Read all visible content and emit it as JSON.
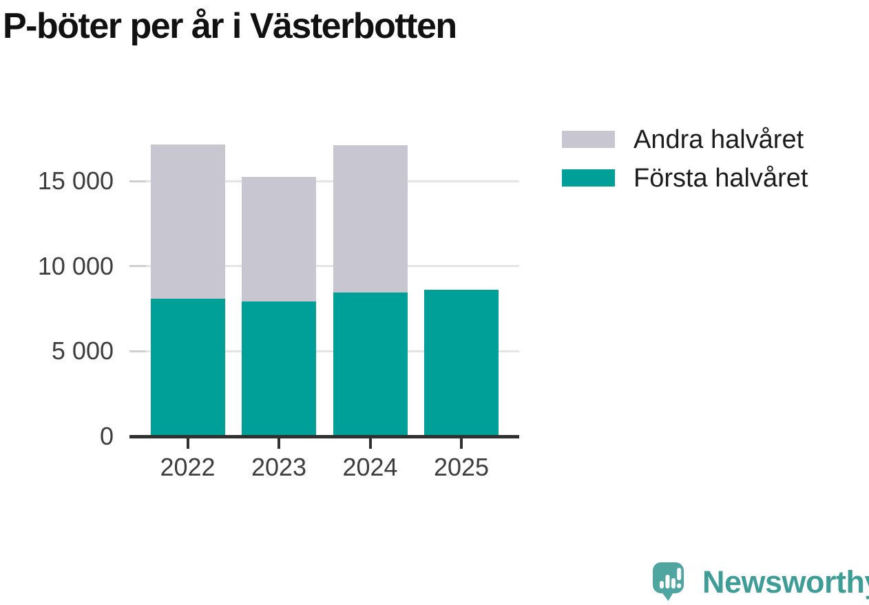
{
  "title": "P-böter per år i Västerbotten",
  "legend": {
    "items": [
      {
        "label": "Andra halvåret",
        "color": "#c8c6d1"
      },
      {
        "label": "Första halvåret",
        "color": "#00a099"
      }
    ]
  },
  "chart_data": {
    "type": "bar",
    "stacked": true,
    "title": "P-böter per år i Västerbotten",
    "categories": [
      "2022",
      "2023",
      "2024",
      "2025"
    ],
    "series": [
      {
        "name": "Första halvåret",
        "color": "#00a099",
        "values": [
          8100,
          7950,
          8450,
          8600
        ]
      },
      {
        "name": "Andra halvåret",
        "color": "#c8c6d1",
        "values": [
          9050,
          7300,
          8650,
          0
        ]
      }
    ],
    "xlabel": "",
    "ylabel": "",
    "ylim": [
      0,
      17500
    ],
    "yticks": [
      {
        "value": 0,
        "label": "0"
      },
      {
        "value": 5000,
        "label": "5 000"
      },
      {
        "value": 10000,
        "label": "10 000"
      },
      {
        "value": 15000,
        "label": "15 000"
      }
    ],
    "grid": true,
    "legend_position": "top-right"
  },
  "logo": {
    "text": "Newsworthy",
    "icon": "newsworthy-speech-bubble-barchart-icon",
    "text_color": "#3f9d98",
    "icon_color": "#4fa6a1"
  },
  "colors": {
    "background": "#ffffff",
    "axis": "#303030",
    "gridline": "#e4e4e4",
    "tick_dash": "#cfcfcf",
    "tick_label": "#3d3d3d",
    "title": "#111111",
    "legend_text": "#1c1c1c"
  }
}
